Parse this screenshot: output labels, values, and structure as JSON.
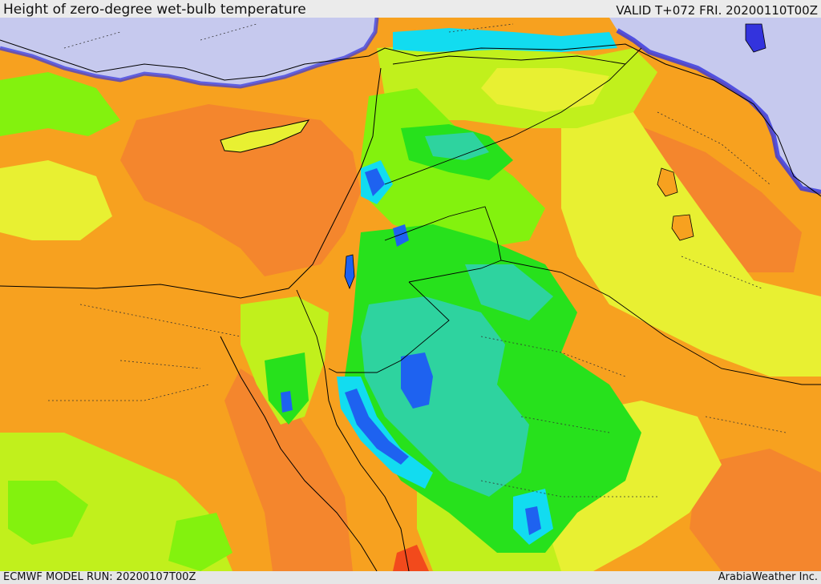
{
  "header": {
    "title": "Height of zero-degree wet-bulb temperature",
    "valid": "VALID T+072 FRI. 20200110T00Z"
  },
  "footer": {
    "model_run": "ECMWF MODEL RUN: 20200107T00Z",
    "credit": "ArabiaWeather Inc."
  },
  "colors": {
    "sea": "#c6c9ee",
    "orange": "#f7a11f",
    "dark_orange": "#f4862d",
    "yellow": "#e8f032",
    "yellow_green": "#c1f01c",
    "light_green": "#83f20e",
    "green": "#27e11c",
    "teal": "#2ed39f",
    "cyan": "#12dcf0",
    "blue": "#1e62f0",
    "deep_blue": "#3333dd",
    "red": "#f24a1c"
  }
}
